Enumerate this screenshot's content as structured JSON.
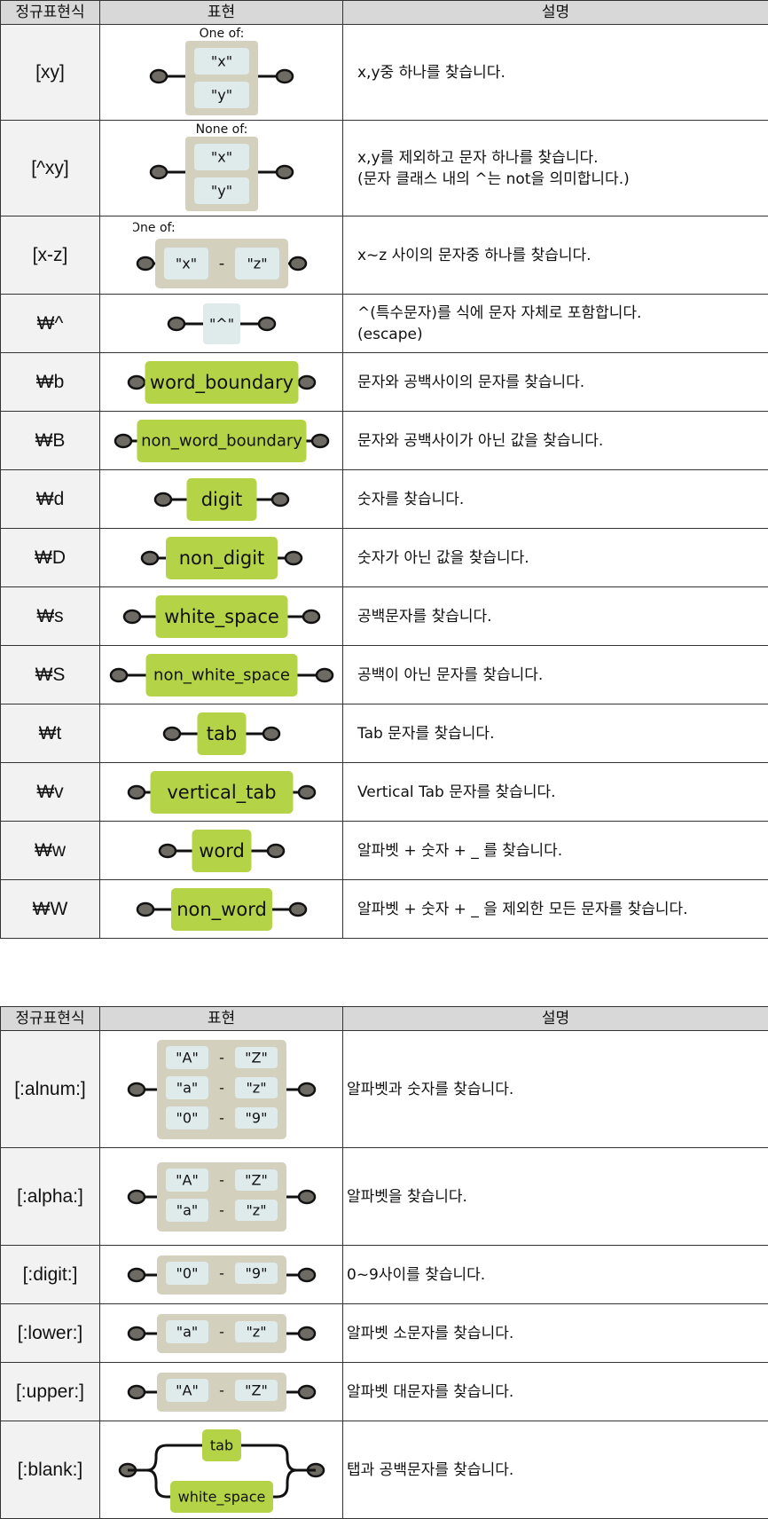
{
  "table1": {
    "headers": {
      "col1": "정규표현식",
      "col2": "표현",
      "col3": "설명"
    },
    "rows": [
      {
        "expr": "[xy]",
        "diagram": {
          "type": "oneof",
          "title": "One of:",
          "items": [
            "\"x\"",
            "\"y\""
          ]
        },
        "desc": [
          "x,y중 하나를 찾습니다."
        ]
      },
      {
        "expr": "[^xy]",
        "diagram": {
          "type": "oneof",
          "title": "None of:",
          "items": [
            "\"x\"",
            "\"y\""
          ]
        },
        "desc": [
          "x,y를 제외하고 문자 하나를 찾습니다.",
          "(문자 클래스 내의 ^는 not을 의미합니다.)"
        ]
      },
      {
        "expr": "[x-z]",
        "diagram": {
          "type": "range",
          "title": "One of:",
          "from": "\"x\"",
          "to": "\"z\""
        },
        "desc": [
          "x~z 사이의 문자중 하나를 찾습니다."
        ]
      },
      {
        "expr": "₩^",
        "diagram": {
          "type": "literal",
          "text": "\"^\""
        },
        "desc": [
          "^(특수문자)를 식에 문자 자체로 포함합니다.",
          "(escape)"
        ]
      },
      {
        "expr": "₩b",
        "diagram": {
          "type": "token",
          "text": "word_boundary"
        },
        "desc": [
          "문자와 공백사이의 문자를 찾습니다."
        ]
      },
      {
        "expr": "₩B",
        "diagram": {
          "type": "token",
          "text": "non_word_boundary"
        },
        "desc": [
          "문자와 공백사이가 아닌 값을 찾습니다."
        ]
      },
      {
        "expr": "₩d",
        "diagram": {
          "type": "token",
          "text": "digit"
        },
        "desc": [
          "숫자를 찾습니다."
        ]
      },
      {
        "expr": "₩D",
        "diagram": {
          "type": "token",
          "text": "non_digit"
        },
        "desc": [
          "숫자가 아닌 값을 찾습니다."
        ]
      },
      {
        "expr": "₩s",
        "diagram": {
          "type": "token",
          "text": "white_space"
        },
        "desc": [
          "공백문자를 찾습니다."
        ]
      },
      {
        "expr": "₩S",
        "diagram": {
          "type": "token",
          "text": "non_white_space"
        },
        "desc": [
          "공백이 아닌 문자를 찾습니다."
        ]
      },
      {
        "expr": "₩t",
        "diagram": {
          "type": "token",
          "text": "tab"
        },
        "desc": [
          "Tab 문자를 찾습니다."
        ]
      },
      {
        "expr": "₩v",
        "diagram": {
          "type": "token",
          "text": "vertical_tab"
        },
        "desc": [
          "Vertical Tab 문자를 찾습니다."
        ]
      },
      {
        "expr": "₩w",
        "diagram": {
          "type": "token",
          "text": "word"
        },
        "desc": [
          "알파벳 + 숫자 + _ 를 찾습니다."
        ]
      },
      {
        "expr": "₩W",
        "diagram": {
          "type": "token",
          "text": "non_word"
        },
        "desc": [
          "알파벳 + 숫자 + _ 을 제외한 모든 문자를 찾습니다."
        ]
      }
    ]
  },
  "table2": {
    "headers": {
      "col1": "정규표현식",
      "col2": "표현",
      "col3": "설명"
    },
    "rows": [
      {
        "expr": "[:alnum:]",
        "diagram": {
          "type": "ranges",
          "pairs": [
            [
              "\"A\"",
              "\"Z\""
            ],
            [
              "\"a\"",
              "\"z\""
            ],
            [
              "\"0\"",
              "\"9\""
            ]
          ]
        },
        "desc": [
          "알파벳과 숫자를 찾습니다."
        ]
      },
      {
        "expr": "[:alpha:]",
        "diagram": {
          "type": "ranges",
          "pairs": [
            [
              "\"A\"",
              "\"Z\""
            ],
            [
              "\"a\"",
              "\"z\""
            ]
          ]
        },
        "desc": [
          "알파벳을 찾습니다."
        ]
      },
      {
        "expr": "[:digit:]",
        "diagram": {
          "type": "ranges",
          "pairs": [
            [
              "\"0\"",
              "\"9\""
            ]
          ]
        },
        "desc": [
          "0~9사이를 찾습니다."
        ]
      },
      {
        "expr": "[:lower:]",
        "diagram": {
          "type": "ranges",
          "pairs": [
            [
              "\"a\"",
              "\"z\""
            ]
          ]
        },
        "desc": [
          "알파벳 소문자를 찾습니다."
        ]
      },
      {
        "expr": "[:upper:]",
        "diagram": {
          "type": "ranges",
          "pairs": [
            [
              "\"A\"",
              "\"Z\""
            ]
          ]
        },
        "desc": [
          "알파벳 대문자를 찾습니다."
        ]
      },
      {
        "expr": "[:blank:]",
        "diagram": {
          "type": "branch",
          "items": [
            "tab",
            "white_space"
          ]
        },
        "desc": [
          "탭과 공백문자를 찾습니다."
        ]
      }
    ]
  },
  "colors": {
    "token_green": "#b5d346",
    "frame_gray": "#d3d0bd",
    "literal_box": "#dfeaea",
    "node_fill": "#6d6b63",
    "line": "#111111",
    "header_bg": "#d8d8d8",
    "expr_bg": "#f2f2f2"
  }
}
